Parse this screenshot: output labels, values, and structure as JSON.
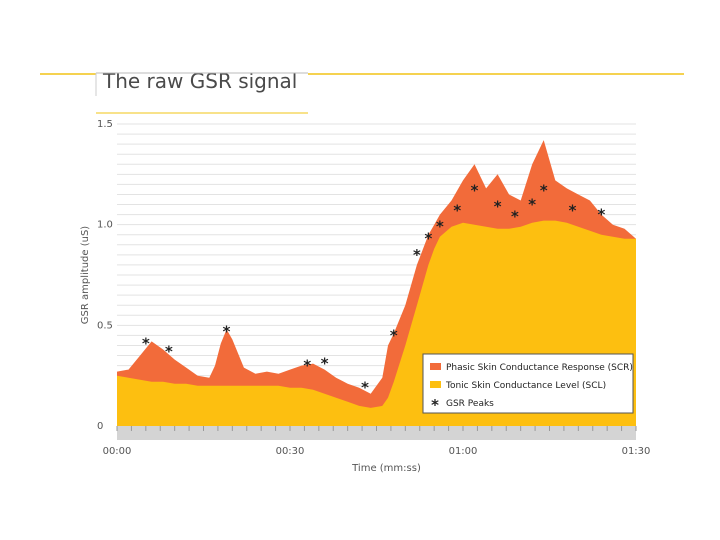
{
  "slide": {
    "title": "The raw GSR signal",
    "accent_color": "#f2c416",
    "header_line_color": "#f2c416"
  },
  "chart_data": {
    "type": "area",
    "title": "",
    "xlabel": "Time (mm:ss)",
    "ylabel": "GSR amplitude (uS)",
    "xlim": [
      0,
      90
    ],
    "ylim": [
      0,
      1.5
    ],
    "x_tick_labels": [
      "00:00",
      "00:30",
      "01:00",
      "01:30"
    ],
    "x_tick_values": [
      0,
      30,
      60,
      90
    ],
    "y_tick_labels": [
      "0",
      "0.5",
      "1.0",
      "1.5"
    ],
    "y_tick_values": [
      0,
      0.5,
      1.0,
      1.5
    ],
    "grid": true,
    "legend_position": "bottom-right",
    "x": [
      0,
      2,
      4,
      6,
      8,
      10,
      12,
      14,
      16,
      17,
      18,
      19,
      20,
      22,
      24,
      26,
      28,
      30,
      32,
      34,
      36,
      38,
      40,
      42,
      44,
      46,
      47,
      48,
      50,
      52,
      54,
      55,
      56,
      58,
      60,
      62,
      64,
      66,
      68,
      70,
      72,
      74,
      76,
      78,
      80,
      82,
      84,
      86,
      88,
      90
    ],
    "series": [
      {
        "name": "Phasic Skin Conductance Response (SCR)",
        "color": "#f26b3a",
        "values": [
          0.27,
          0.28,
          0.35,
          0.42,
          0.38,
          0.33,
          0.29,
          0.25,
          0.24,
          0.3,
          0.41,
          0.48,
          0.43,
          0.29,
          0.26,
          0.27,
          0.26,
          0.28,
          0.3,
          0.31,
          0.28,
          0.24,
          0.21,
          0.19,
          0.16,
          0.24,
          0.4,
          0.46,
          0.6,
          0.8,
          0.95,
          1.0,
          1.05,
          1.12,
          1.22,
          1.3,
          1.18,
          1.25,
          1.15,
          1.12,
          1.3,
          1.42,
          1.22,
          1.18,
          1.15,
          1.12,
          1.05,
          1.0,
          0.98,
          0.93
        ]
      },
      {
        "name": "Tonic Skin Conductance Level (SCL)",
        "color": "#fdbf10",
        "values": [
          0.25,
          0.24,
          0.23,
          0.22,
          0.22,
          0.21,
          0.21,
          0.2,
          0.2,
          0.2,
          0.2,
          0.2,
          0.2,
          0.2,
          0.2,
          0.2,
          0.2,
          0.19,
          0.19,
          0.18,
          0.16,
          0.14,
          0.12,
          0.1,
          0.09,
          0.1,
          0.14,
          0.22,
          0.4,
          0.6,
          0.8,
          0.88,
          0.94,
          0.99,
          1.01,
          1.0,
          0.99,
          0.98,
          0.98,
          0.99,
          1.01,
          1.02,
          1.02,
          1.01,
          0.99,
          0.97,
          0.95,
          0.94,
          0.93,
          0.93
        ]
      }
    ],
    "peaks": {
      "name": "GSR Peaks",
      "marker": "*",
      "x": [
        5,
        9,
        19,
        33,
        36,
        43,
        48,
        52,
        54,
        56,
        59,
        62,
        66,
        69,
        72,
        74,
        79,
        84
      ],
      "y": [
        0.44,
        0.4,
        0.5,
        0.33,
        0.34,
        0.22,
        0.48,
        0.88,
        0.96,
        1.02,
        1.1,
        1.2,
        1.12,
        1.07,
        1.13,
        1.2,
        1.1,
        1.08
      ]
    }
  }
}
